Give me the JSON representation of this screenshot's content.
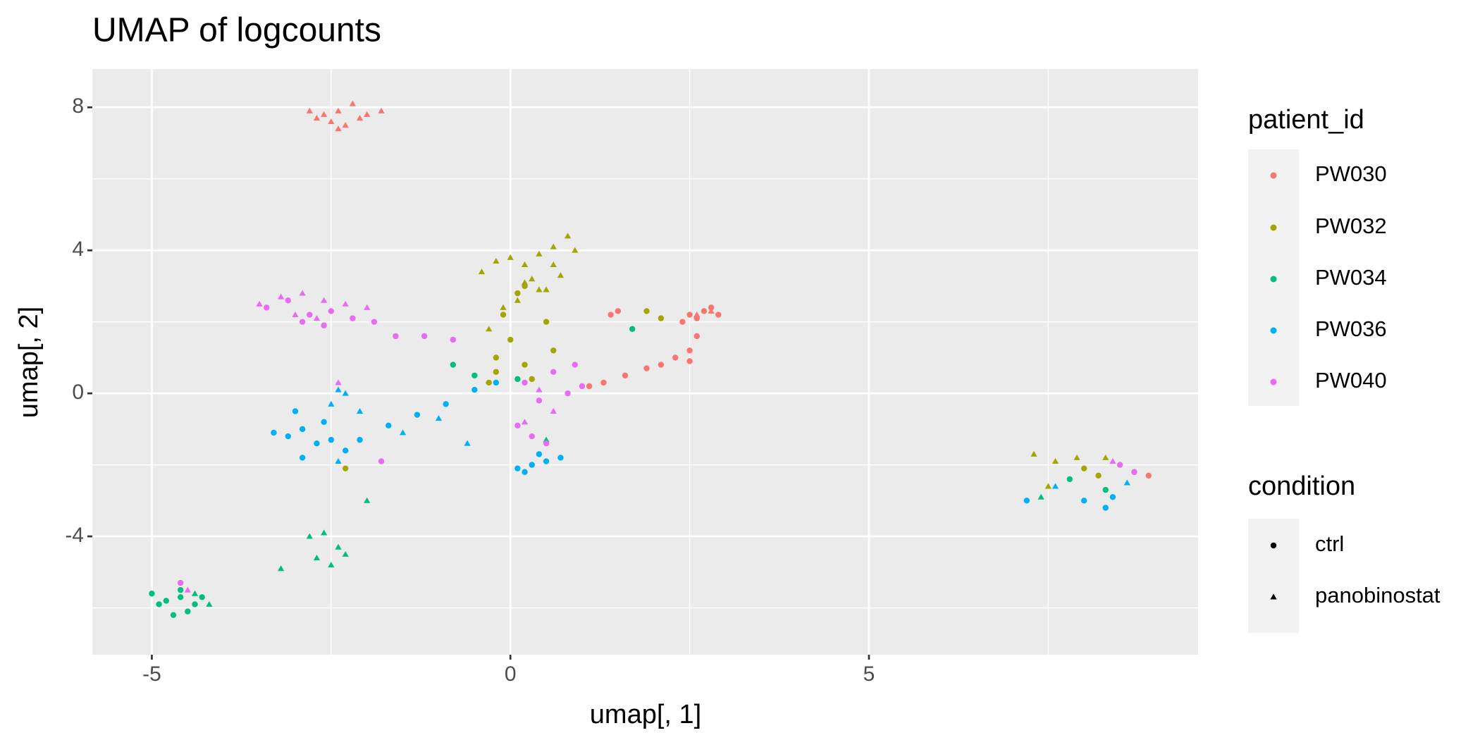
{
  "chart_data": {
    "type": "scatter",
    "title": "UMAP of logcounts",
    "x_label": "umap[, 1]",
    "y_label": "umap[, 2]",
    "xlim": [
      -5.83,
      9.59
    ],
    "ylim": [
      -7.31,
      9.07
    ],
    "xticks": [
      -5,
      0,
      5
    ],
    "yticks": [
      -4,
      0,
      4,
      8
    ],
    "x_minor_grid": [
      -2.5,
      2.5,
      7.5
    ],
    "y_minor_grid": [
      -6,
      -2,
      2,
      6
    ],
    "grid": true,
    "legend_title": "patient_id",
    "shape_legend": {
      "title": "condition",
      "items": [
        {
          "name": "ctrl",
          "shape": "circle"
        },
        {
          "name": "panobinostat",
          "shape": "triangle"
        }
      ]
    },
    "series": [
      {
        "name": "PW030",
        "color": "#F8766D",
        "groups": [
          {
            "x": [
              2.5,
              2.7,
              2.9,
              2.4,
              2.6,
              2.8,
              2.6,
              2.5,
              2.5,
              1.3,
              1.6,
              1.9,
              2.1,
              2.3,
              1.1,
              1.4,
              8.7,
              8.9,
              1.5
            ],
            "y": [
              2.2,
              2.3,
              2.2,
              2.0,
              2.1,
              2.4,
              1.6,
              1.2,
              0.9,
              0.3,
              0.5,
              0.7,
              0.8,
              1.0,
              0.2,
              2.2,
              -2.2,
              -2.3,
              2.3
            ]
          },
          {
            "x": [
              -2.8,
              -2.6,
              -2.4,
              -2.2,
              -2.0,
              -1.8,
              -2.5,
              -2.3,
              -2.1,
              -2.7,
              2.6,
              2.8,
              -2.4
            ],
            "y": [
              7.9,
              7.8,
              7.9,
              8.1,
              7.8,
              7.9,
              7.6,
              7.5,
              7.7,
              7.7,
              2.2,
              2.3,
              7.4
            ]
          }
        ]
      },
      {
        "name": "PW032",
        "color": "#A3A500",
        "groups": [
          {
            "x": [
              -0.2,
              0,
              0.2,
              -0.1,
              0.1,
              0.3,
              -0.3,
              0.5,
              -0.2,
              0.6,
              1.9,
              2.1,
              8.2,
              8.0,
              -2.3,
              0.2
            ],
            "y": [
              1.0,
              1.5,
              0.8,
              2.2,
              2.8,
              0.4,
              0.3,
              2.0,
              0.6,
              1.2,
              2.3,
              2.1,
              -2.3,
              -2.1,
              -2.1,
              3.0
            ]
          },
          {
            "x": [
              -0.4,
              -0.2,
              0,
              0.2,
              0.4,
              0.6,
              0.8,
              0.9,
              0.7,
              0.5,
              0.3,
              0.1,
              -0.1,
              0.6,
              0.4,
              7.3,
              7.6,
              7.9,
              8.3,
              7.5,
              -0.3,
              0.2
            ],
            "y": [
              3.4,
              3.7,
              3.8,
              3.6,
              3.9,
              4.1,
              4.4,
              4.0,
              3.3,
              2.9,
              3.2,
              2.6,
              2.4,
              3.6,
              2.9,
              -1.7,
              -1.9,
              -1.8,
              -1.8,
              -2.6,
              1.8,
              3.1
            ]
          }
        ]
      },
      {
        "name": "PW034",
        "color": "#00BF7D",
        "groups": [
          {
            "x": [
              -5.0,
              -4.8,
              -4.6,
              -4.4,
              -4.7,
              -4.5,
              -4.9,
              -4.6,
              -4.3,
              -0.8,
              -0.5,
              1.7,
              7.8,
              8.3,
              0.1
            ],
            "y": [
              -5.6,
              -5.8,
              -5.7,
              -5.9,
              -6.2,
              -6.1,
              -5.9,
              -5.5,
              -5.7,
              0.8,
              0.5,
              1.8,
              -2.4,
              -2.7,
              0.4
            ]
          },
          {
            "x": [
              -2.8,
              -2.6,
              -2.4,
              -2.7,
              -2.5,
              -3.2,
              -2.3,
              -4.4,
              -4.2,
              -2.0,
              0.5,
              7.4
            ],
            "y": [
              -4.0,
              -3.9,
              -4.3,
              -4.6,
              -4.8,
              -4.9,
              -4.5,
              -5.6,
              -5.9,
              -3.0,
              -1.3,
              -2.9
            ]
          }
        ]
      },
      {
        "name": "PW036",
        "color": "#00B0F6",
        "groups": [
          {
            "x": [
              -3.3,
              -3.1,
              -2.9,
              -2.7,
              -2.5,
              -2.3,
              -2.9,
              -2.6,
              -3.0,
              -2.1,
              -1.7,
              -1.3,
              -0.9,
              -0.5,
              -0.2,
              0.1,
              0.3,
              0.5,
              0.7,
              0.2,
              8.0,
              8.3,
              8.4,
              7.2,
              0.4
            ],
            "y": [
              -1.1,
              -1.2,
              -1.0,
              -1.4,
              -1.3,
              -1.6,
              -1.8,
              -0.8,
              -0.5,
              -1.3,
              -0.9,
              -0.6,
              -0.3,
              0.1,
              0.3,
              -2.1,
              -2.0,
              -1.9,
              -1.8,
              -2.2,
              -3.0,
              -3.2,
              -2.9,
              -3.0,
              -1.7
            ]
          },
          {
            "x": [
              -2.5,
              -2.3,
              -2.1,
              -2.4,
              -0.6,
              -1.0,
              -1.5,
              7.6,
              8.6,
              -2.4
            ],
            "y": [
              -0.3,
              0.0,
              -0.5,
              -1.9,
              -1.4,
              -0.7,
              -1.1,
              -2.6,
              -2.5,
              0.1
            ]
          }
        ]
      },
      {
        "name": "PW040",
        "color": "#E76BF3",
        "groups": [
          {
            "x": [
              -3.4,
              -3.1,
              -2.8,
              -2.5,
              -2.2,
              -1.9,
              -1.6,
              -2.9,
              -2.6,
              -1.2,
              -0.8,
              0.2,
              0.4,
              0.6,
              0.8,
              1.0,
              0.3,
              0.5,
              0.1,
              -1.8,
              8.5,
              8.7,
              -4.6,
              0.9
            ],
            "y": [
              2.4,
              2.6,
              2.2,
              2.3,
              2.1,
              2.0,
              1.6,
              2.0,
              1.9,
              1.6,
              1.5,
              0.3,
              -0.2,
              0.6,
              0.0,
              0.2,
              -1.2,
              -1.4,
              -0.9,
              -1.9,
              -2.0,
              -2.2,
              -5.3,
              0.8
            ]
          },
          {
            "x": [
              -3.5,
              -3.2,
              -2.9,
              -2.6,
              -2.3,
              -2.0,
              -3.0,
              -2.7,
              0.4,
              0.6,
              0.2,
              8.4,
              -4.5,
              -2.4
            ],
            "y": [
              2.5,
              2.7,
              2.8,
              2.6,
              2.5,
              2.4,
              2.2,
              2.1,
              0.1,
              -0.5,
              -0.8,
              -1.9,
              -5.5,
              0.3
            ]
          }
        ]
      }
    ]
  }
}
